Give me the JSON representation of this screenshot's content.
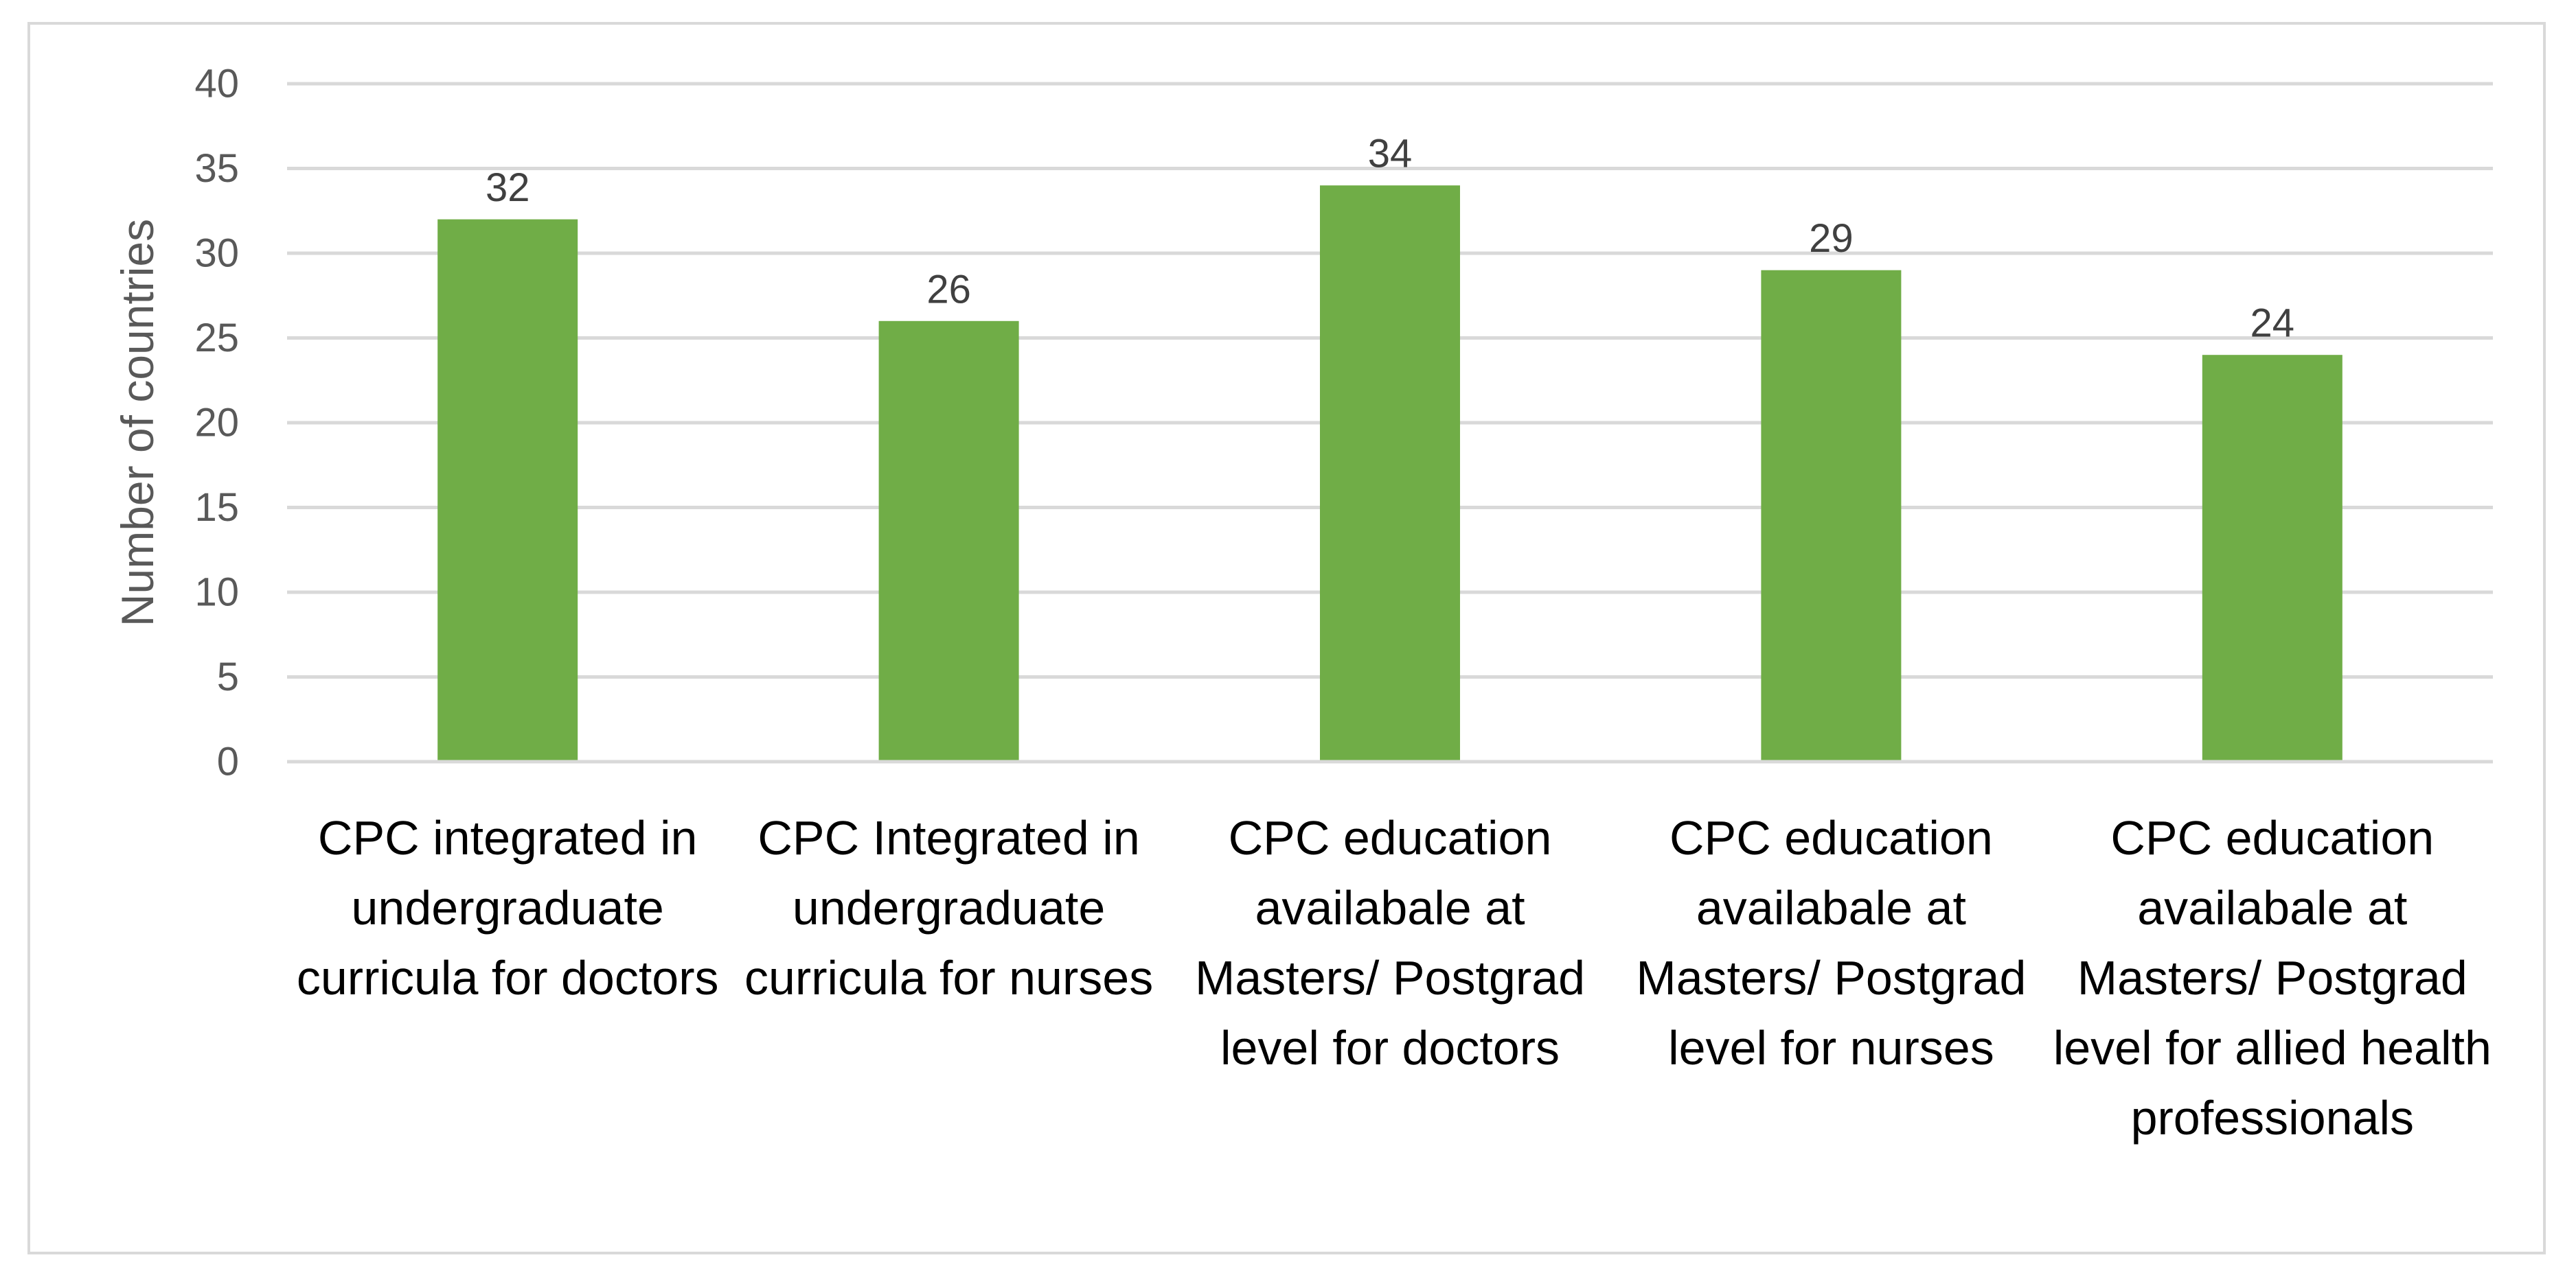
{
  "chart_data": {
    "type": "bar",
    "title": "",
    "xlabel": "",
    "ylabel": "Number of countries",
    "categories": [
      "CPC integrated in undergraduate curricula for doctors",
      "CPC Integrated in undergraduate curricula for nurses",
      "CPC education availabale at Masters/ Postgrad level for doctors",
      "CPC education availabale at Masters/ Postgrad level for nurses",
      "CPC education availabale at Masters/ Postgrad level for allied health professionals"
    ],
    "values": [
      32,
      26,
      34,
      29,
      24
    ],
    "ylim": [
      0,
      40
    ],
    "yticks": [
      0,
      5,
      10,
      15,
      20,
      25,
      30,
      35,
      40
    ],
    "grid": true,
    "legend": "none",
    "data_labels": true,
    "colors": {
      "bar": "#70ad47",
      "grid": "#d9d9d9",
      "axis_text": "#595959",
      "label_text": "#404040"
    }
  }
}
